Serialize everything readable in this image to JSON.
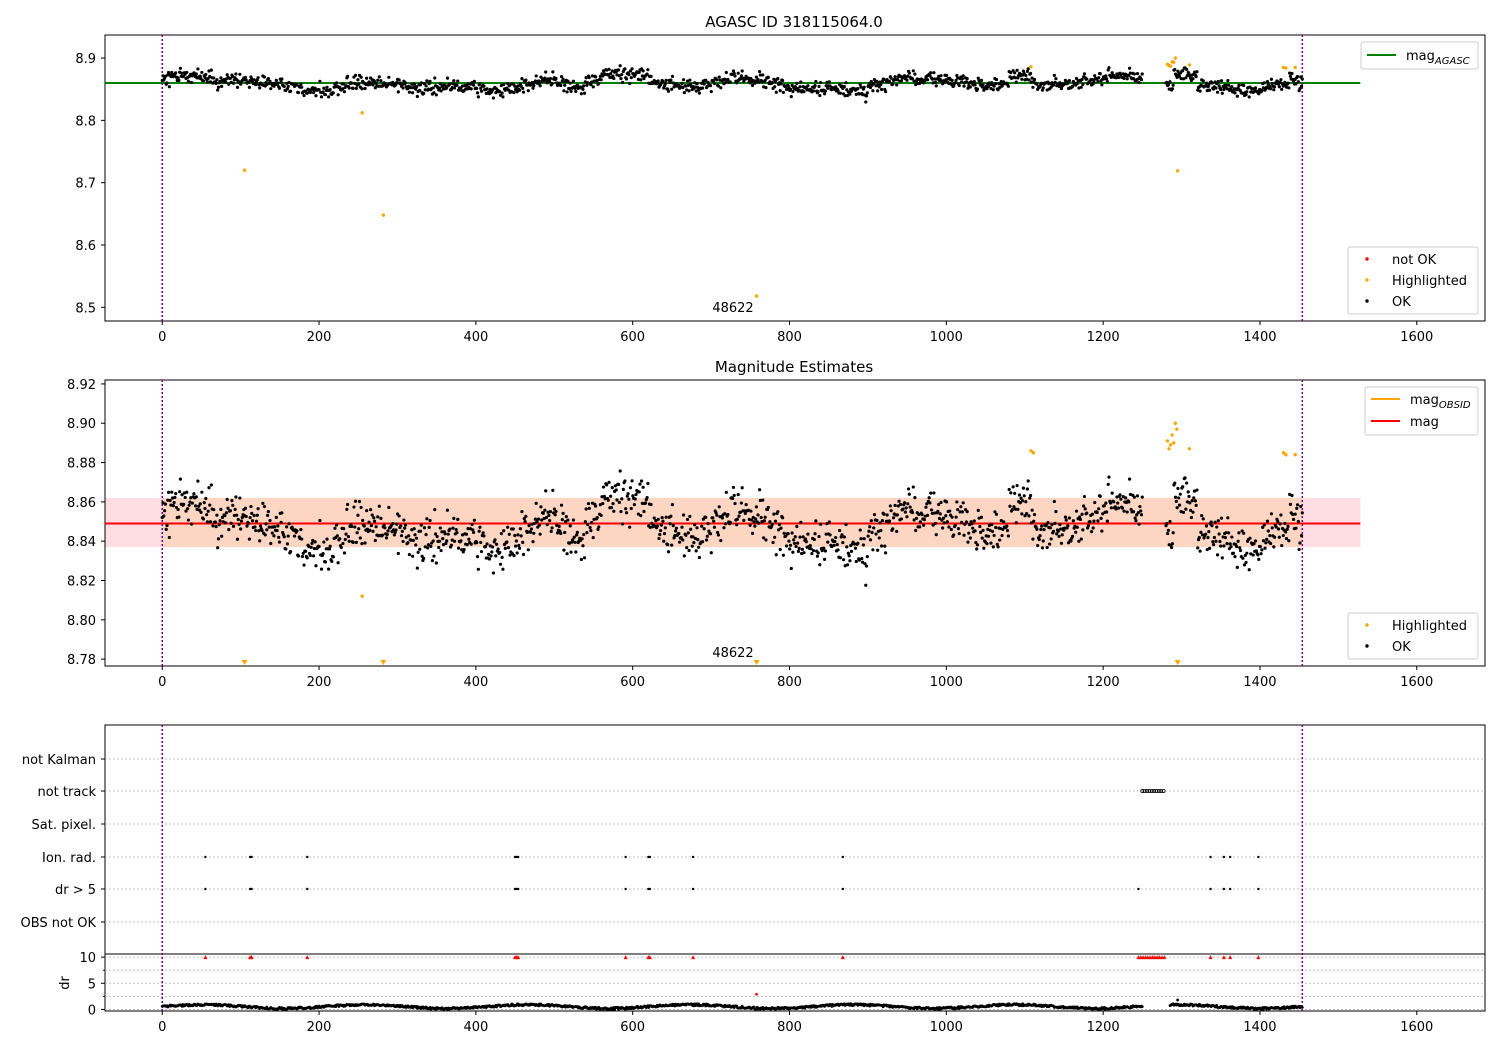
{
  "chart_data": [
    {
      "type": "scatter",
      "title": "AGASC ID 318115064.0",
      "xlabel": "",
      "ylabel": "",
      "xlim": [
        -73,
        1687
      ],
      "ylim": [
        8.478,
        8.937
      ],
      "xticks": [
        "0",
        "200",
        "400",
        "600",
        "800",
        "1000",
        "1200",
        "1400",
        "1600"
      ],
      "yticks": [
        "8.5",
        "8.6",
        "8.7",
        "8.8",
        "8.9"
      ],
      "grid": false,
      "legend_placement": [
        "top-right",
        "bottom-right"
      ],
      "annotation": "48622",
      "annotation_x": 725,
      "vlines": [
        0,
        1454
      ],
      "hline_value": 8.86,
      "hline_xrange": [
        -73,
        1528
      ],
      "legend_line": [
        {
          "label": "mag",
          "subscript": "AGASC",
          "color": "#008000"
        }
      ],
      "legend_points": [
        {
          "label": "not OK",
          "color": "#ff0000"
        },
        {
          "label": "Highlighted",
          "color": "#ffa500"
        },
        {
          "label": "OK",
          "color": "#000000"
        }
      ],
      "series": [
        {
          "name": "OK",
          "color": "#000000",
          "count": 1440,
          "x_range": [
            0,
            1454
          ],
          "typical_range": [
            8.82,
            8.88
          ],
          "trend": "slow oscillation around 8.845, segments near 8.87 at x≈580-600 and x≈930-940, gap x≈1250-1280"
        },
        {
          "name": "Highlighted",
          "color": "#ffa500",
          "points": [
            [
              105,
              8.72
            ],
            [
              255,
              8.812
            ],
            [
              282,
              8.648
            ],
            [
              758,
              8.518
            ],
            [
              1108,
              8.886
            ],
            [
              1282,
              8.89
            ],
            [
              1284,
              8.888
            ],
            [
              1286,
              8.887
            ],
            [
              1288,
              8.894
            ],
            [
              1290,
              8.893
            ],
            [
              1292,
              8.9
            ],
            [
              1295,
              8.719
            ],
            [
              1310,
              8.889
            ],
            [
              1430,
              8.885
            ],
            [
              1433,
              8.884
            ],
            [
              1445,
              8.885
            ]
          ]
        },
        {
          "name": "not OK",
          "color": "#ff0000",
          "points": []
        }
      ]
    },
    {
      "type": "scatter",
      "title": "Magnitude Estimates",
      "xlabel": "",
      "ylabel": "",
      "xlim": [
        -73,
        1687
      ],
      "ylim": [
        8.7765,
        8.922
      ],
      "xticks": [
        "0",
        "200",
        "400",
        "600",
        "800",
        "1000",
        "1200",
        "1400",
        "1600"
      ],
      "yticks": [
        "8.78",
        "8.80",
        "8.82",
        "8.84",
        "8.86",
        "8.88",
        "8.90",
        "8.92"
      ],
      "grid": false,
      "legend_placement": [
        "top-right",
        "bottom-right"
      ],
      "annotation": "48622",
      "annotation_x": 725,
      "vlines": [
        0,
        1454
      ],
      "mag_value": 8.849,
      "band": [
        8.837,
        8.862
      ],
      "band_colors": [
        "#ffdde3",
        "#fdd5c3"
      ],
      "legend_line": [
        {
          "label": "mag",
          "subscript": "OBSID",
          "color": "#ffa500"
        },
        {
          "label": "mag",
          "subscript": "",
          "color": "#ff0000"
        }
      ],
      "legend_points": [
        {
          "label": "Highlighted",
          "color": "#ffa500"
        },
        {
          "label": "OK",
          "color": "#000000"
        }
      ],
      "offscale_markers_x": [
        105,
        282,
        758,
        1295
      ],
      "series": [
        {
          "name": "OK",
          "color": "#000000",
          "count": 1440,
          "x_range": [
            0,
            1454
          ],
          "typical_range": [
            8.82,
            8.875
          ]
        },
        {
          "name": "Highlighted",
          "color": "#ffa500",
          "points": [
            [
              255,
              8.812
            ],
            [
              1108,
              8.886
            ],
            [
              1111,
              8.885
            ],
            [
              1282,
              8.891
            ],
            [
              1284,
              8.887
            ],
            [
              1286,
              8.889
            ],
            [
              1288,
              8.894
            ],
            [
              1290,
              8.89
            ],
            [
              1292,
              8.9
            ],
            [
              1294,
              8.897
            ],
            [
              1310,
              8.887
            ],
            [
              1430,
              8.885
            ],
            [
              1433,
              8.884
            ],
            [
              1445,
              8.884
            ]
          ]
        }
      ]
    },
    {
      "type": "scatter",
      "title": "",
      "xlabel": "",
      "xlim": [
        -73,
        1687
      ],
      "xticks": [
        "0",
        "200",
        "400",
        "600",
        "800",
        "1000",
        "1200",
        "1400",
        "1600"
      ],
      "grid": true,
      "vlines": [
        0,
        1454
      ],
      "flags_ylabels": [
        "not Kalman",
        "not track",
        "Sat. pixel.",
        "Ion. rad.",
        "dr > 5",
        "OBS not OK"
      ],
      "flag_points": {
        "not track": [
          1250,
          1253,
          1256,
          1259,
          1262,
          1265,
          1268,
          1271,
          1274,
          1277
        ],
        "Ion. rad.": [
          55,
          112,
          114,
          185,
          450,
          452,
          454,
          591,
          620,
          622,
          677,
          868,
          1337,
          1354,
          1362,
          1398
        ],
        "dr > 5": [
          55,
          112,
          114,
          185,
          450,
          452,
          454,
          591,
          620,
          622,
          677,
          868,
          1245,
          1337,
          1354,
          1362,
          1398
        ]
      },
      "dr_ylabel": "dr",
      "dr_yticks": [
        "0",
        "5",
        "10"
      ],
      "dr_ylim": [
        -0.3,
        10.6
      ],
      "dr_clip_points": [
        55,
        112,
        114,
        185,
        450,
        452,
        454,
        591,
        620,
        622,
        677,
        868,
        1245,
        1248,
        1251,
        1254,
        1257,
        1260,
        1263,
        1266,
        1269,
        1272,
        1275,
        1278,
        1337,
        1354,
        1362,
        1398
      ],
      "dr_outliers": [
        [
          758,
          2.9
        ],
        [
          1295,
          1.8
        ]
      ],
      "dr_series": {
        "name": "dr",
        "color": "#000000",
        "typical_range": [
          0,
          1.2
        ],
        "gap": [
          1250,
          1285
        ]
      }
    }
  ]
}
